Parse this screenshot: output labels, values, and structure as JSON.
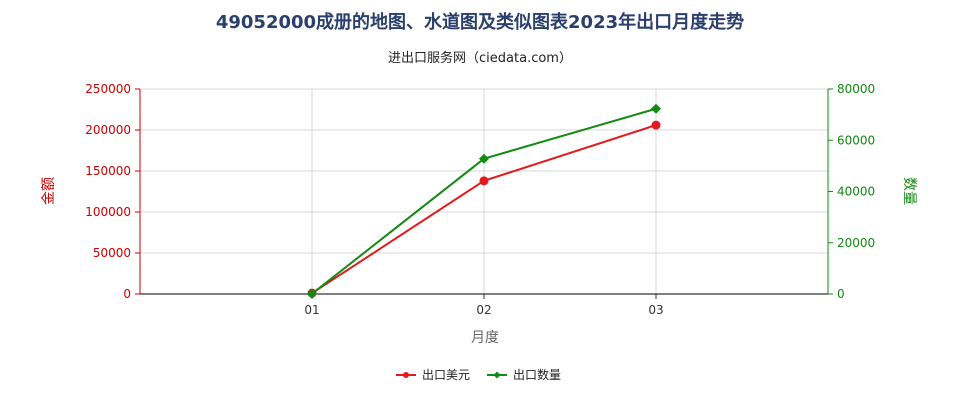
{
  "chart_data": {
    "type": "line",
    "title": "49052000成册的地图、水道图及类似图表2023年出口月度走势",
    "subtitle": "进出口服务网（ciedata.com）",
    "xlabel": "月度",
    "ylabel_left": "金额",
    "ylabel_right": "数量",
    "categories": [
      "01",
      "02",
      "03"
    ],
    "ylim_left": [
      0,
      250000
    ],
    "ylim_right": [
      0,
      80000
    ],
    "yticks_left": [
      "0",
      "50000",
      "100000",
      "150000",
      "200000",
      "250000"
    ],
    "yticks_right": [
      "0",
      "20000",
      "40000",
      "60000",
      "80000"
    ],
    "grid": true,
    "legend_position": "bottom-center",
    "series": [
      {
        "name": "出口美元",
        "axis": "left",
        "color": "#e31a1c",
        "marker": "circle",
        "values": [
          1000,
          138000,
          206000
        ]
      },
      {
        "name": "出口数量",
        "axis": "right",
        "color": "#138a13",
        "marker": "diamond",
        "values": [
          100,
          52800,
          72300
        ]
      }
    ]
  }
}
